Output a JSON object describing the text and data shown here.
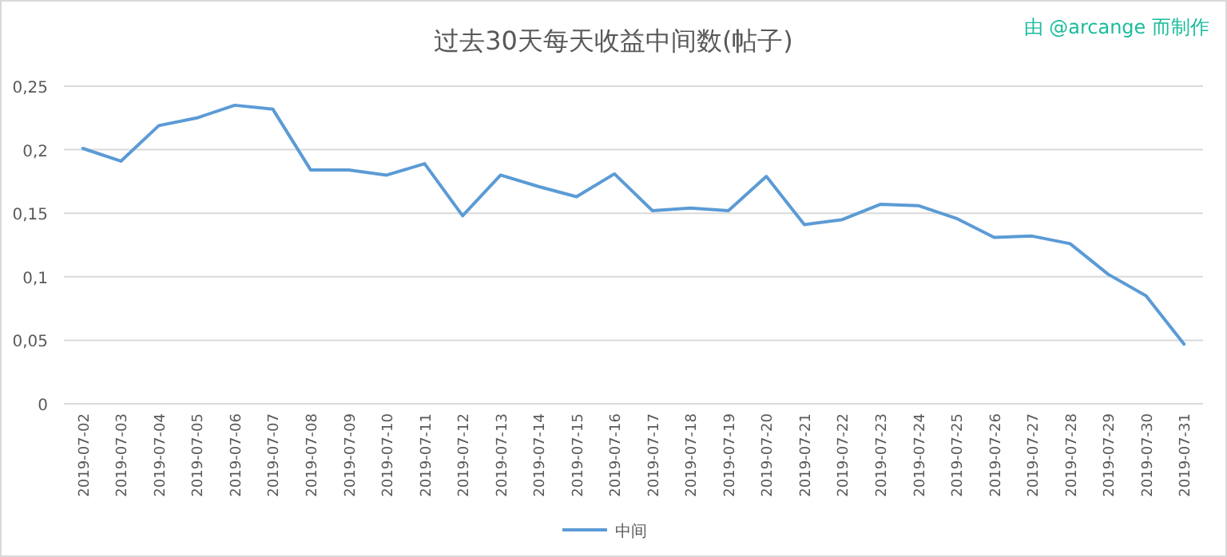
{
  "chart_data": {
    "type": "line",
    "title": "过去30天每天收益中间数(帖子)",
    "annotations": [
      "由 @arcange 而制作"
    ],
    "categories": [
      "2019-07-02",
      "2019-07-03",
      "2019-07-04",
      "2019-07-05",
      "2019-07-06",
      "2019-07-07",
      "2019-07-08",
      "2019-07-09",
      "2019-07-10",
      "2019-07-11",
      "2019-07-12",
      "2019-07-13",
      "2019-07-14",
      "2019-07-15",
      "2019-07-16",
      "2019-07-17",
      "2019-07-18",
      "2019-07-19",
      "2019-07-20",
      "2019-07-21",
      "2019-07-22",
      "2019-07-23",
      "2019-07-24",
      "2019-07-25",
      "2019-07-26",
      "2019-07-27",
      "2019-07-28",
      "2019-07-29",
      "2019-07-30",
      "2019-07-31"
    ],
    "series": [
      {
        "name": "中间",
        "color": "#5b9bd5",
        "values": [
          0.201,
          0.191,
          0.219,
          0.225,
          0.235,
          0.232,
          0.184,
          0.184,
          0.18,
          0.189,
          0.148,
          0.18,
          0.171,
          0.163,
          0.181,
          0.152,
          0.154,
          0.152,
          0.179,
          0.141,
          0.145,
          0.157,
          0.156,
          0.146,
          0.131,
          0.132,
          0.126,
          0.102,
          0.085,
          0.047
        ]
      }
    ],
    "ylim": [
      0,
      0.25
    ],
    "yticks": [
      {
        "value": 0,
        "label": "0"
      },
      {
        "value": 0.05,
        "label": "0,05"
      },
      {
        "value": 0.1,
        "label": "0,1"
      },
      {
        "value": 0.15,
        "label": "0,15"
      },
      {
        "value": 0.2,
        "label": "0,2"
      },
      {
        "value": 0.25,
        "label": "0,25"
      }
    ],
    "grid": "y",
    "legend": "bottom",
    "marker": "none",
    "line_style": "solid"
  }
}
